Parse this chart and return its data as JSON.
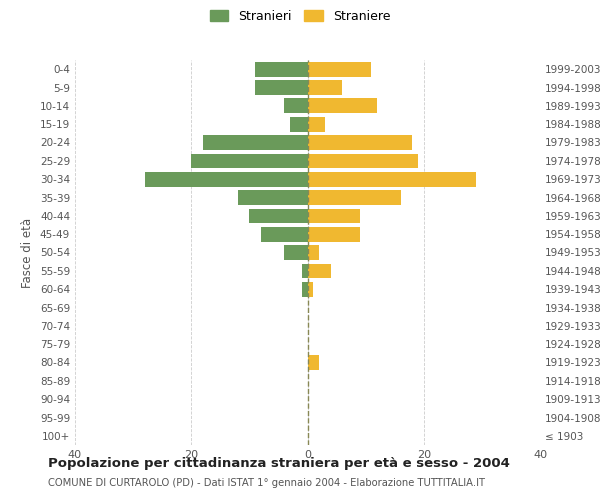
{
  "age_groups": [
    "100+",
    "95-99",
    "90-94",
    "85-89",
    "80-84",
    "75-79",
    "70-74",
    "65-69",
    "60-64",
    "55-59",
    "50-54",
    "45-49",
    "40-44",
    "35-39",
    "30-34",
    "25-29",
    "20-24",
    "15-19",
    "10-14",
    "5-9",
    "0-4"
  ],
  "birth_years": [
    "≤ 1903",
    "1904-1908",
    "1909-1913",
    "1914-1918",
    "1919-1923",
    "1924-1928",
    "1929-1933",
    "1934-1938",
    "1939-1943",
    "1944-1948",
    "1949-1953",
    "1954-1958",
    "1959-1963",
    "1964-1968",
    "1969-1973",
    "1974-1978",
    "1979-1983",
    "1984-1988",
    "1989-1993",
    "1994-1998",
    "1999-2003"
  ],
  "males": [
    0,
    0,
    0,
    0,
    0,
    0,
    0,
    0,
    1,
    1,
    4,
    8,
    10,
    12,
    28,
    20,
    18,
    3,
    4,
    9,
    9
  ],
  "females": [
    0,
    0,
    0,
    0,
    2,
    0,
    0,
    0,
    1,
    4,
    2,
    9,
    9,
    16,
    29,
    19,
    18,
    3,
    12,
    6,
    11
  ],
  "color_males": "#6a9a5a",
  "color_females": "#f0b830",
  "background_color": "#ffffff",
  "grid_color": "#cccccc",
  "title": "Popolazione per cittadinanza straniera per età e sesso - 2004",
  "subtitle": "COMUNE DI CURTAROLO (PD) - Dati ISTAT 1° gennaio 2004 - Elaborazione TUTTITALIA.IT",
  "ylabel_left": "Fasce di età",
  "legend_males": "Stranieri",
  "legend_females": "Straniere",
  "xlim": 40,
  "bar_height": 0.8
}
